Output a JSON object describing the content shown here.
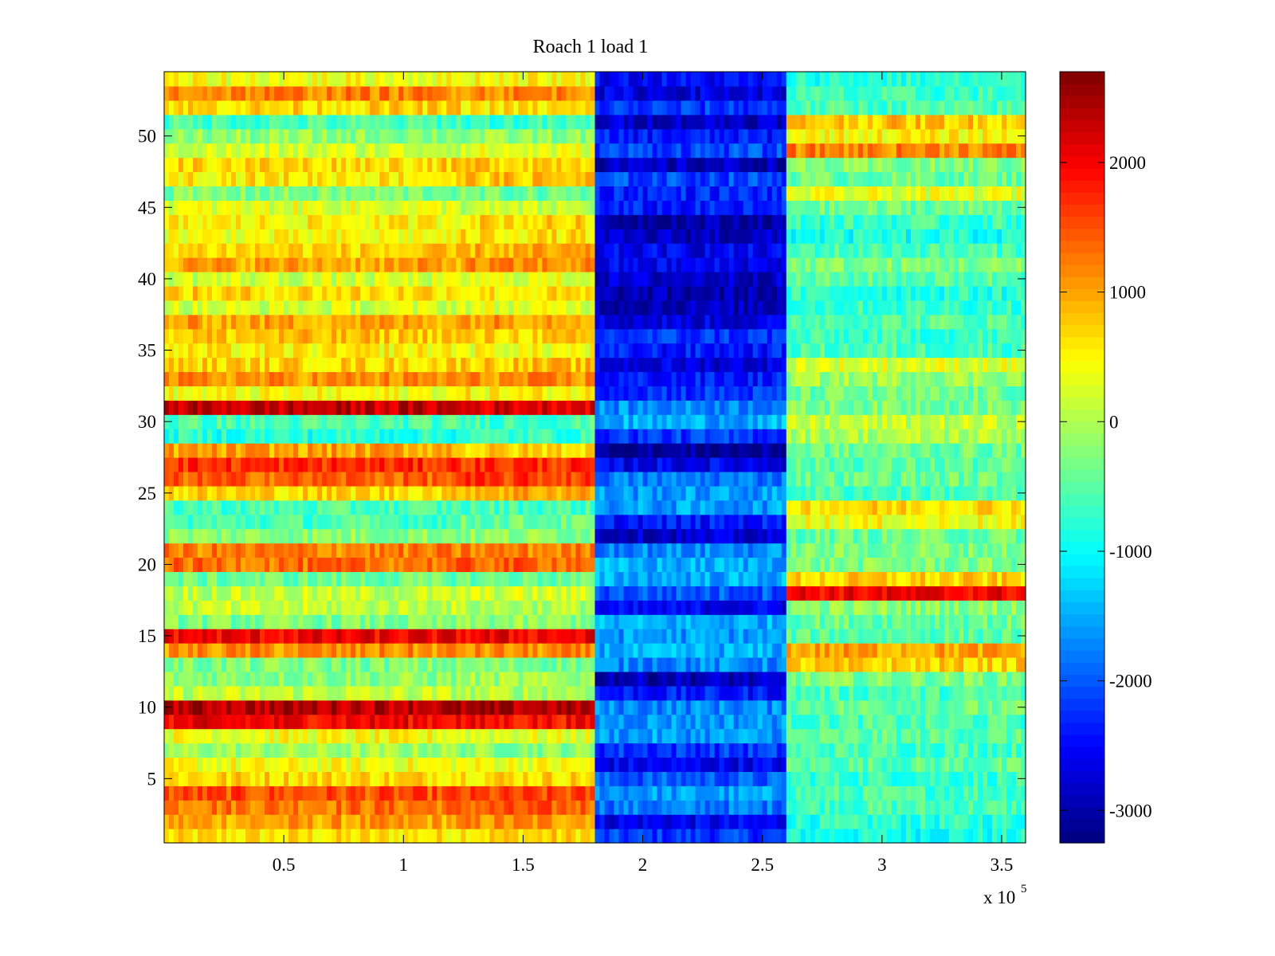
{
  "chart_data": {
    "type": "heatmap",
    "title": "Roach 1 load 1",
    "xlabel": "",
    "ylabel": "",
    "x_multiplier": "x 10",
    "x_multiplier_exp": "5",
    "x_range": [
      0,
      360000
    ],
    "y_range": [
      0.5,
      54.5
    ],
    "rows": 54,
    "x_ticks": [
      {
        "value": 50000,
        "label": "0.5"
      },
      {
        "value": 100000,
        "label": "1"
      },
      {
        "value": 150000,
        "label": "1.5"
      },
      {
        "value": 200000,
        "label": "2"
      },
      {
        "value": 250000,
        "label": "2.5"
      },
      {
        "value": 300000,
        "label": "3"
      },
      {
        "value": 350000,
        "label": "3.5"
      }
    ],
    "y_ticks": [
      {
        "value": 5,
        "label": "5"
      },
      {
        "value": 10,
        "label": "10"
      },
      {
        "value": 15,
        "label": "15"
      },
      {
        "value": 20,
        "label": "20"
      },
      {
        "value": 25,
        "label": "25"
      },
      {
        "value": 30,
        "label": "30"
      },
      {
        "value": 35,
        "label": "35"
      },
      {
        "value": 40,
        "label": "40"
      },
      {
        "value": 45,
        "label": "45"
      },
      {
        "value": 50,
        "label": "50"
      }
    ],
    "colorbar": {
      "colormap": "jet",
      "range": [
        -3250,
        2700
      ],
      "ticks": [
        {
          "value": 2000,
          "label": "2000"
        },
        {
          "value": 1000,
          "label": "1000"
        },
        {
          "value": 0,
          "label": "0"
        },
        {
          "value": -1000,
          "label": "-1000"
        },
        {
          "value": -2000,
          "label": "-2000"
        },
        {
          "value": -3000,
          "label": "-3000"
        }
      ]
    },
    "segments_x": [
      0,
      125000,
      180000,
      260000,
      360000
    ],
    "row_values": [
      [
        600,
        700,
        -2200,
        -900
      ],
      [
        1000,
        1100,
        -2600,
        -800
      ],
      [
        1300,
        1400,
        -1800,
        -600
      ],
      [
        1500,
        1500,
        -1600,
        -600
      ],
      [
        700,
        700,
        -2000,
        -700
      ],
      [
        400,
        400,
        -2600,
        -500
      ],
      [
        -100,
        -200,
        -2200,
        -600
      ],
      [
        400,
        300,
        -1600,
        -500
      ],
      [
        2000,
        1900,
        -1600,
        -600
      ],
      [
        2400,
        2400,
        -1700,
        -400
      ],
      [
        100,
        0,
        -2400,
        -600
      ],
      [
        -200,
        -100,
        -2900,
        -300
      ],
      [
        -300,
        -300,
        -1700,
        700
      ],
      [
        1100,
        1100,
        -1500,
        1000
      ],
      [
        2000,
        2000,
        -1600,
        -500
      ],
      [
        -300,
        -200,
        -1500,
        -400
      ],
      [
        100,
        0,
        -2600,
        -200
      ],
      [
        100,
        200,
        -2000,
        2000
      ],
      [
        -400,
        -400,
        -1500,
        700
      ],
      [
        1300,
        1400,
        -1500,
        -300
      ],
      [
        1200,
        1200,
        -1700,
        -300
      ],
      [
        -200,
        -200,
        -2800,
        -400
      ],
      [
        -600,
        -400,
        -2400,
        400
      ],
      [
        -600,
        -600,
        -1600,
        700
      ],
      [
        700,
        1000,
        -1600,
        -600
      ],
      [
        1400,
        1600,
        -1800,
        -400
      ],
      [
        1700,
        1700,
        -2600,
        -500
      ],
      [
        1000,
        700,
        -3100,
        -400
      ],
      [
        -800,
        -700,
        -2200,
        0
      ],
      [
        -600,
        -600,
        -1500,
        100
      ],
      [
        2300,
        2200,
        -1700,
        -300
      ],
      [
        400,
        500,
        -2200,
        -400
      ],
      [
        1100,
        1100,
        -2400,
        -100
      ],
      [
        700,
        800,
        -2700,
        300
      ],
      [
        500,
        400,
        -2400,
        -600
      ],
      [
        800,
        700,
        -2200,
        -700
      ],
      [
        1000,
        1100,
        -2700,
        -500
      ],
      [
        200,
        300,
        -2900,
        -700
      ],
      [
        700,
        600,
        -3000,
        -800
      ],
      [
        200,
        300,
        -2800,
        -500
      ],
      [
        1000,
        1100,
        -2600,
        -300
      ],
      [
        700,
        900,
        -2600,
        -600
      ],
      [
        400,
        600,
        -2900,
        -900
      ],
      [
        500,
        700,
        -3000,
        -700
      ],
      [
        300,
        100,
        -2400,
        -400
      ],
      [
        -300,
        -400,
        -2300,
        300
      ],
      [
        600,
        800,
        -2100,
        -400
      ],
      [
        700,
        800,
        -2900,
        -300
      ],
      [
        200,
        300,
        -2100,
        1200
      ],
      [
        -200,
        -200,
        -2400,
        500
      ],
      [
        -600,
        -700,
        -2800,
        800
      ],
      [
        700,
        600,
        -2200,
        -600
      ],
      [
        1200,
        1200,
        -2700,
        -700
      ],
      [
        400,
        500,
        -2500,
        -800
      ]
    ]
  }
}
